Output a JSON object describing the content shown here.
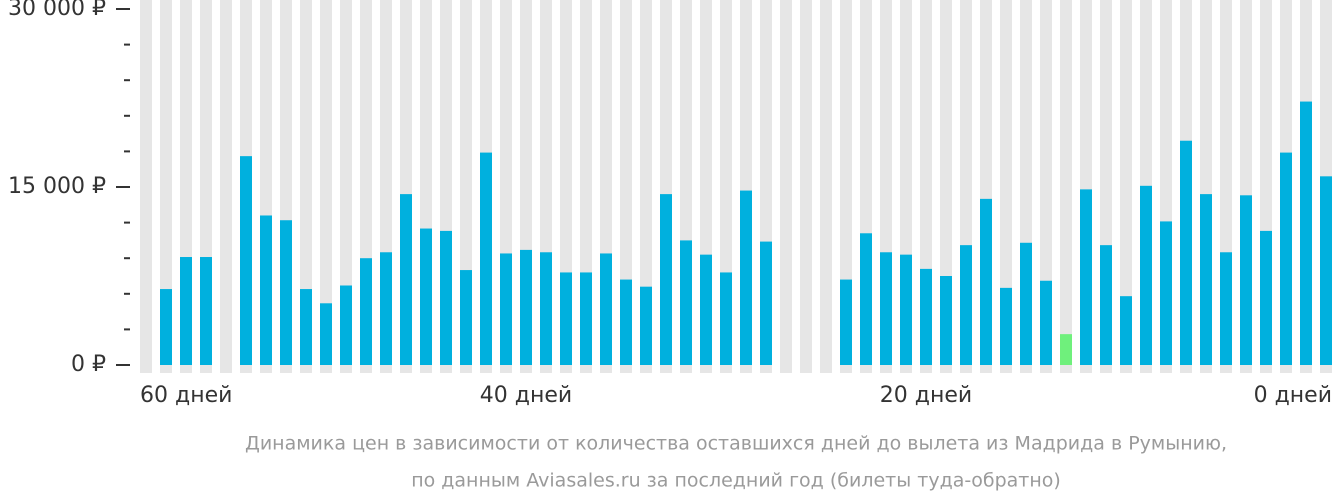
{
  "chart_data": {
    "type": "bar",
    "categories": [
      "60 дней",
      null,
      null,
      null,
      null,
      null,
      null,
      null,
      null,
      null,
      null,
      null,
      null,
      null,
      null,
      null,
      null,
      null,
      null,
      "40 дней",
      null,
      null,
      null,
      null,
      null,
      null,
      null,
      null,
      null,
      null,
      null,
      null,
      null,
      null,
      null,
      null,
      null,
      null,
      null,
      "20 дней",
      null,
      null,
      null,
      null,
      null,
      null,
      null,
      null,
      null,
      null,
      null,
      null,
      null,
      null,
      null,
      null,
      null,
      null,
      null,
      "0 дней"
    ],
    "values": [
      null,
      6400,
      9100,
      9100,
      null,
      17600,
      12600,
      12200,
      6400,
      5200,
      6700,
      9000,
      9500,
      14400,
      11500,
      11300,
      8000,
      17900,
      9400,
      9700,
      9500,
      7800,
      7800,
      9400,
      7200,
      6600,
      14400,
      10500,
      9300,
      7800,
      14700,
      10400,
      null,
      null,
      null,
      7200,
      11100,
      9500,
      9300,
      8100,
      7500,
      10100,
      14000,
      6500,
      10300,
      7100,
      2600,
      14800,
      10100,
      5800,
      15100,
      12100,
      18900,
      14400,
      9500,
      14300,
      11300,
      17900,
      22200,
      15900
    ],
    "colors": [
      "#00b0de",
      "#00b0de",
      "#00b0de",
      "#00b0de",
      "#00b0de",
      "#00b0de",
      "#00b0de",
      "#00b0de",
      "#00b0de",
      "#00b0de",
      "#00b0de",
      "#00b0de",
      "#00b0de",
      "#00b0de",
      "#00b0de",
      "#00b0de",
      "#00b0de",
      "#00b0de",
      "#00b0de",
      "#00b0de",
      "#00b0de",
      "#00b0de",
      "#00b0de",
      "#00b0de",
      "#00b0de",
      "#00b0de",
      "#00b0de",
      "#00b0de",
      "#00b0de",
      "#00b0de",
      "#00b0de",
      "#00b0de",
      "#00b0de",
      "#00b0de",
      "#00b0de",
      "#00b0de",
      "#00b0de",
      "#00b0de",
      "#00b0de",
      "#00b0de",
      "#00b0de",
      "#00b0de",
      "#00b0de",
      "#00b0de",
      "#00b0de",
      "#00b0de",
      "#6ff07c",
      "#00b0de",
      "#00b0de",
      "#00b0de",
      "#00b0de",
      "#00b0de",
      "#00b0de",
      "#00b0de",
      "#00b0de",
      "#00b0de",
      "#00b0de",
      "#00b0de",
      "#00b0de",
      "#00b0de"
    ],
    "column_color": "#e6e6e6",
    "ylim": [
      0,
      30000
    ],
    "yticks": [
      {
        "value": 0,
        "label": "0 ₽"
      },
      {
        "value": 15000,
        "label": "15 000 ₽"
      },
      {
        "value": 30000,
        "label": "30 000 ₽"
      }
    ],
    "minor_yticks": [
      3000,
      6000,
      9000,
      12000,
      18000,
      21000,
      24000,
      27000
    ],
    "caption": [
      "Динамика цен в зависимости от количества оставшихся дней до вылета из Мадрида в Румынию,",
      "по данным Aviasales.ru за последний год (билеты туда-обратно)"
    ]
  }
}
